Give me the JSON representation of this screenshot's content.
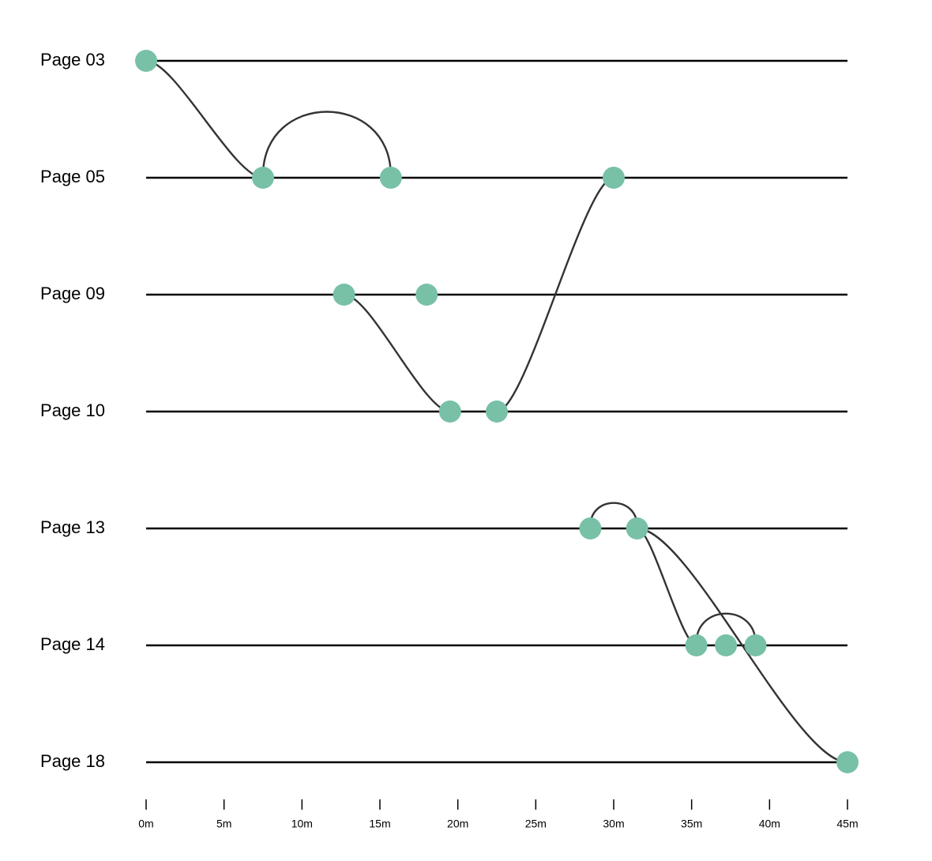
{
  "chart_data": {
    "type": "timeline",
    "title": "",
    "xlabel": "",
    "ylabel": "",
    "x_unit": "minutes",
    "xlim": [
      0,
      45
    ],
    "x_ticks": [
      0,
      5,
      10,
      15,
      20,
      25,
      30,
      35,
      40,
      45
    ],
    "x_tick_labels": [
      "0m",
      "5m",
      "10m",
      "15m",
      "20m",
      "25m",
      "30m",
      "35m",
      "40m",
      "45m"
    ],
    "rows": [
      "Page 03",
      "Page 05",
      "Page 09",
      "Page 10",
      "Page 13",
      "Page 14",
      "Page 18"
    ],
    "events": [
      {
        "row": "Page 03",
        "t": 0
      },
      {
        "row": "Page 05",
        "t": 7.5
      },
      {
        "row": "Page 05",
        "t": 15.7
      },
      {
        "row": "Page 05",
        "t": 30
      },
      {
        "row": "Page 09",
        "t": 12.7
      },
      {
        "row": "Page 09",
        "t": 18
      },
      {
        "row": "Page 10",
        "t": 19.5
      },
      {
        "row": "Page 10",
        "t": 22.5
      },
      {
        "row": "Page 13",
        "t": 28.5
      },
      {
        "row": "Page 13",
        "t": 31.5
      },
      {
        "row": "Page 14",
        "t": 35.3
      },
      {
        "row": "Page 14",
        "t": 37.2
      },
      {
        "row": "Page 14",
        "t": 39.1
      },
      {
        "row": "Page 18",
        "t": 45
      }
    ],
    "links": [
      {
        "from": 0,
        "to": 1
      },
      {
        "from": 1,
        "to": 2
      },
      {
        "from": 4,
        "to": 6
      },
      {
        "from": 7,
        "to": 3
      },
      {
        "from": 8,
        "to": 9
      },
      {
        "from": 9,
        "to": 10
      },
      {
        "from": 10,
        "to": 12
      },
      {
        "from": 9,
        "to": 13
      }
    ],
    "grid": false,
    "legend": "none",
    "colors": {
      "dot": "#78c1a6",
      "link": "#333333",
      "row_line": "#000000"
    }
  }
}
